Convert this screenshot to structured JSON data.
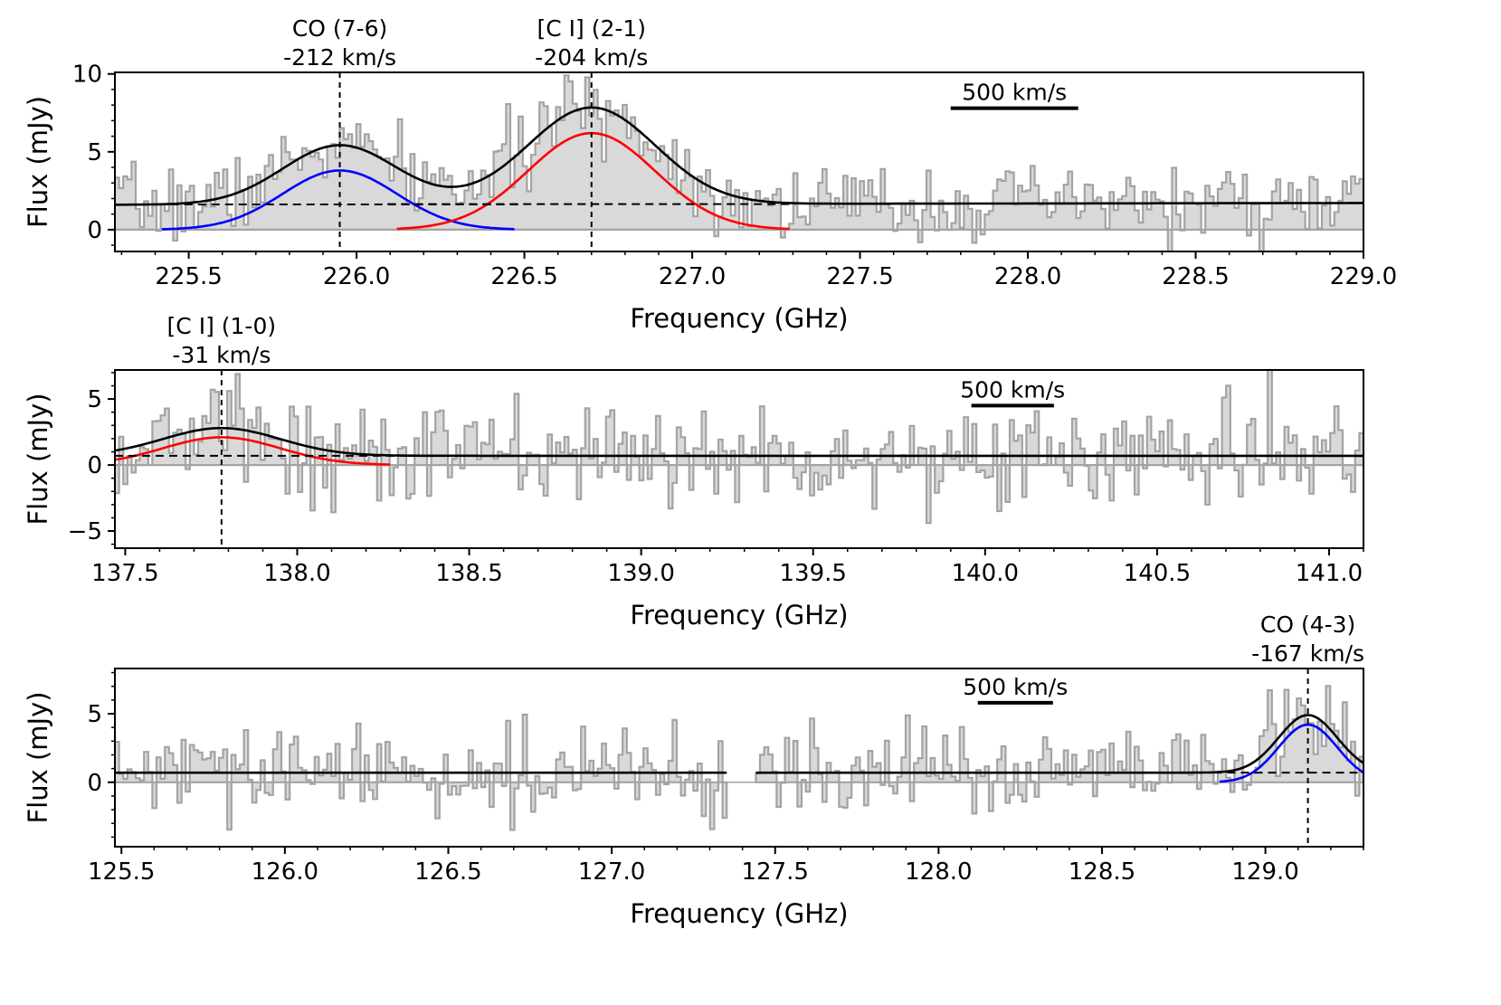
{
  "chart_data": [
    {
      "type": "step",
      "xlabel": "Frequency (GHz)",
      "ylabel": "Flux (mJy)",
      "xlim": [
        225.28,
        229.0
      ],
      "ylim": [
        -1.4,
        10.1
      ],
      "xticks": [
        225.5,
        226.0,
        226.5,
        227.0,
        227.5,
        228.0,
        228.5,
        229.0
      ],
      "xtick_labels": [
        "225.5",
        "226.0",
        "226.5",
        "227.0",
        "227.5",
        "228.0",
        "228.5",
        "229.0"
      ],
      "yticks": [
        0,
        5,
        10
      ],
      "ytick_labels": [
        "0",
        "5",
        "10"
      ],
      "continuum": 1.6,
      "continuum_slope": 0.03,
      "noise_sigma": 1.2,
      "seed": 7,
      "spectrum_range": [
        225.28,
        229.0
      ],
      "gaps": [],
      "scale_bar": {
        "label": "500 km/s",
        "x_start": 227.77,
        "x_end": 228.15,
        "y": 7.8
      },
      "lines": [
        {
          "name": "CO (7-6)",
          "velocity": "-212 km/s",
          "center": 225.95,
          "amplitude": 3.8,
          "sigma": 0.17,
          "color": "#0000ff",
          "extent": [
            225.42,
            226.47
          ]
        },
        {
          "name": "[C I] (2-1)",
          "velocity": "-204 km/s",
          "center": 226.7,
          "amplitude": 6.2,
          "sigma": 0.19,
          "color": "#ff0000",
          "extent": [
            226.12,
            227.29
          ]
        }
      ]
    },
    {
      "type": "step",
      "xlabel": "Frequency (GHz)",
      "ylabel": "Flux (mJy)",
      "xlim": [
        137.47,
        141.1
      ],
      "ylim": [
        -6.3,
        7.2
      ],
      "xticks": [
        137.5,
        138.0,
        138.5,
        139.0,
        139.5,
        140.0,
        140.5,
        141.0
      ],
      "xtick_labels": [
        "137.5",
        "138.0",
        "138.5",
        "139.0",
        "139.5",
        "140.0",
        "140.5",
        "141.0"
      ],
      "yticks": [
        -5,
        0,
        5
      ],
      "ytick_labels": [
        "−5",
        "0",
        "5"
      ],
      "continuum": 0.7,
      "continuum_slope": 0,
      "noise_sigma": 2.0,
      "seed": 13,
      "spectrum_range": [
        137.47,
        141.1
      ],
      "gaps": [],
      "scale_bar": {
        "label": "500 km/s",
        "x_start": 139.96,
        "x_end": 140.2,
        "y": 4.5
      },
      "lines": [
        {
          "name": "[C I] (1-0)",
          "velocity": "-31 km/s",
          "center": 137.78,
          "amplitude": 2.1,
          "sigma": 0.17,
          "color": "#ff0000",
          "extent": [
            137.47,
            138.27
          ]
        }
      ]
    },
    {
      "type": "step",
      "xlabel": "Frequency (GHz)",
      "ylabel": "Flux (mJy)",
      "xlim": [
        125.48,
        129.3
      ],
      "ylim": [
        -4.7,
        8.3
      ],
      "xticks": [
        125.5,
        126.0,
        126.5,
        127.0,
        127.5,
        128.0,
        128.5,
        129.0
      ],
      "xtick_labels": [
        "125.5",
        "126.0",
        "126.5",
        "127.0",
        "127.5",
        "128.0",
        "128.5",
        "129.0"
      ],
      "yticks": [
        0,
        5
      ],
      "ytick_labels": [
        "0",
        "5"
      ],
      "continuum": 0.7,
      "continuum_slope": 0,
      "noise_sigma": 1.6,
      "seed": 29,
      "spectrum_range": [
        125.48,
        129.3
      ],
      "gaps": [
        [
          127.35,
          127.44
        ]
      ],
      "scale_bar": {
        "label": "500 km/s",
        "x_start": 128.12,
        "x_end": 128.35,
        "y": 5.8
      },
      "lines": [
        {
          "name": "CO (4-3)",
          "velocity": "-167 km/s",
          "center": 129.13,
          "amplitude": 4.2,
          "sigma": 0.09,
          "color": "#0000ff",
          "extent": [
            128.86,
            129.3
          ]
        }
      ]
    }
  ]
}
